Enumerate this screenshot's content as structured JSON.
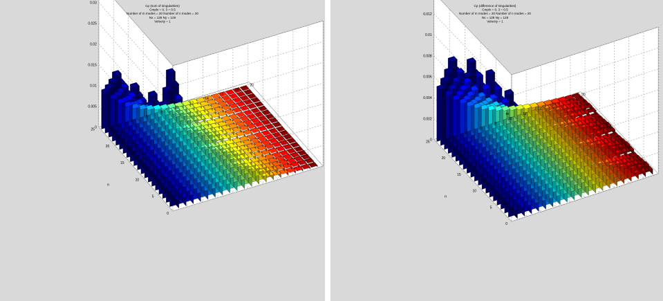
{
  "colors": {
    "figure_background": "#d9d9d9",
    "axes_background": "#ffffff",
    "grid": "#b4b4b4",
    "colormap": "jet"
  },
  "chart_data": [
    {
      "type": "bar3d",
      "title_lines": [
        "Cp (sum of singularities)",
        "Cmplx = 0, 3 = 0.5",
        "Number of m modes = 20 Number of n modes = 20",
        "Nx = 128 Ny = 128",
        "Velocity = 1"
      ],
      "xlabel": "m",
      "ylabel": "n",
      "x_ticks": [
        "2",
        "4",
        "6",
        "8",
        "10",
        "12",
        "14",
        "16",
        "18",
        "20"
      ],
      "y_ticks": [
        "0",
        "5",
        "10",
        "15",
        "20",
        "25"
      ],
      "z_ticks": [
        "0",
        "0.005",
        "0.01",
        "0.015",
        "0.02",
        "0.025",
        "0.03",
        "0.035"
      ],
      "zlim": [
        0,
        0.035
      ],
      "grid": true,
      "n_max": 20,
      "m_max": 20,
      "peaks": [
        0.0325,
        0.022,
        0.019,
        0.017
      ],
      "decay_m": 0.24,
      "decay_n": 0.12
    },
    {
      "type": "bar3d",
      "title_lines": [
        "Cp (difference of singularities)",
        "Cmplx = 0, 3 = 0.5",
        "Number of m modes = 20 Number of n modes = 20",
        "Nx = 128 Ny = 128",
        "Velocity = 1"
      ],
      "xlabel": "m",
      "ylabel": "n",
      "x_ticks": [
        "2",
        "4",
        "6",
        "8",
        "10",
        "12",
        "14",
        "16",
        "18",
        "20"
      ],
      "y_ticks": [
        "0",
        "5",
        "10",
        "15",
        "20",
        "25"
      ],
      "z_ticks": [
        "0",
        "0.002",
        "0.004",
        "0.006",
        "0.008",
        "0.01",
        "0.012",
        "0.014"
      ],
      "zlim": [
        0,
        0.014
      ],
      "grid": true,
      "n_max": 20,
      "m_max": 20,
      "peaks": [
        0.0118,
        0.0118,
        0.011,
        0.0092
      ],
      "decay_m": 0.16,
      "decay_n": 0.08
    }
  ]
}
